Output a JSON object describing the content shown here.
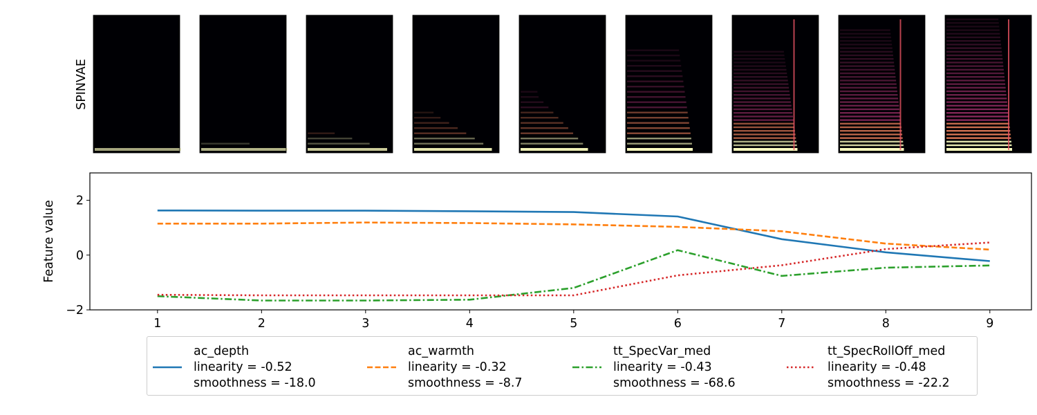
{
  "figure": {
    "row_label": "SPINVAE"
  },
  "colors": {
    "ac_depth": "#1f77b4",
    "ac_warmth": "#ff7f0e",
    "tt_SpecVar_med": "#2ca02c",
    "tt_SpecRollOff_med": "#d62728"
  },
  "chart_data": {
    "type": "line",
    "title": "",
    "xlabel": "",
    "ylabel": "Feature value",
    "x": [
      1,
      2,
      3,
      4,
      5,
      6,
      7,
      8,
      9
    ],
    "xlim": [
      0.35,
      9.4
    ],
    "ylim": [
      -2,
      3
    ],
    "xticks": [
      "1",
      "2",
      "3",
      "4",
      "5",
      "6",
      "7",
      "8",
      "9"
    ],
    "yticks": [
      "−2",
      "0",
      "2"
    ],
    "ytick_values": [
      -2,
      0,
      2
    ],
    "grid": false,
    "legend_placement": "below",
    "series": [
      {
        "name": "ac_depth",
        "style": "solid",
        "linearity": "linearity = -0.52",
        "smoothness": "smoothness = -18.0",
        "values": [
          1.63,
          1.62,
          1.62,
          1.6,
          1.57,
          1.41,
          0.58,
          0.1,
          -0.22
        ]
      },
      {
        "name": "ac_warmth",
        "style": "dashed",
        "linearity": "linearity = -0.32",
        "smoothness": "smoothness = -8.7",
        "values": [
          1.15,
          1.15,
          1.19,
          1.17,
          1.12,
          1.03,
          0.87,
          0.42,
          0.2
        ]
      },
      {
        "name": "tt_SpecVar_med",
        "style": "dashdot",
        "linearity": "linearity = -0.43",
        "smoothness": "smoothness = -68.6",
        "values": [
          -1.5,
          -1.66,
          -1.66,
          -1.63,
          -1.2,
          0.18,
          -0.76,
          -0.46,
          -0.38
        ]
      },
      {
        "name": "tt_SpecRollOff_med",
        "style": "dotted",
        "linearity": "linearity = -0.48",
        "smoothness": "smoothness = -22.2",
        "values": [
          -1.45,
          -1.47,
          -1.47,
          -1.47,
          -1.47,
          -0.74,
          -0.37,
          0.22,
          0.46
        ]
      }
    ],
    "spectrograms": [
      {
        "step": 1,
        "harmonics": 1,
        "brightness": 0.25,
        "cutoff": 1.0
      },
      {
        "step": 2,
        "harmonics": 2,
        "brightness": 0.3,
        "cutoff": 1.0
      },
      {
        "step": 3,
        "harmonics": 4,
        "brightness": 0.4,
        "cutoff": 0.92
      },
      {
        "step": 4,
        "harmonics": 8,
        "brightness": 0.5,
        "cutoff": 0.9
      },
      {
        "step": 5,
        "harmonics": 12,
        "brightness": 0.55,
        "cutoff": 0.78
      },
      {
        "step": 6,
        "harmonics": 20,
        "brightness": 0.65,
        "cutoff": 0.76
      },
      {
        "step": 7,
        "harmonics": 28,
        "brightness": 0.75,
        "cutoff": 0.74
      },
      {
        "step": 8,
        "harmonics": 34,
        "brightness": 0.85,
        "cutoff": 0.74
      },
      {
        "step": 9,
        "harmonics": 38,
        "brightness": 0.95,
        "cutoff": 0.76
      }
    ]
  }
}
